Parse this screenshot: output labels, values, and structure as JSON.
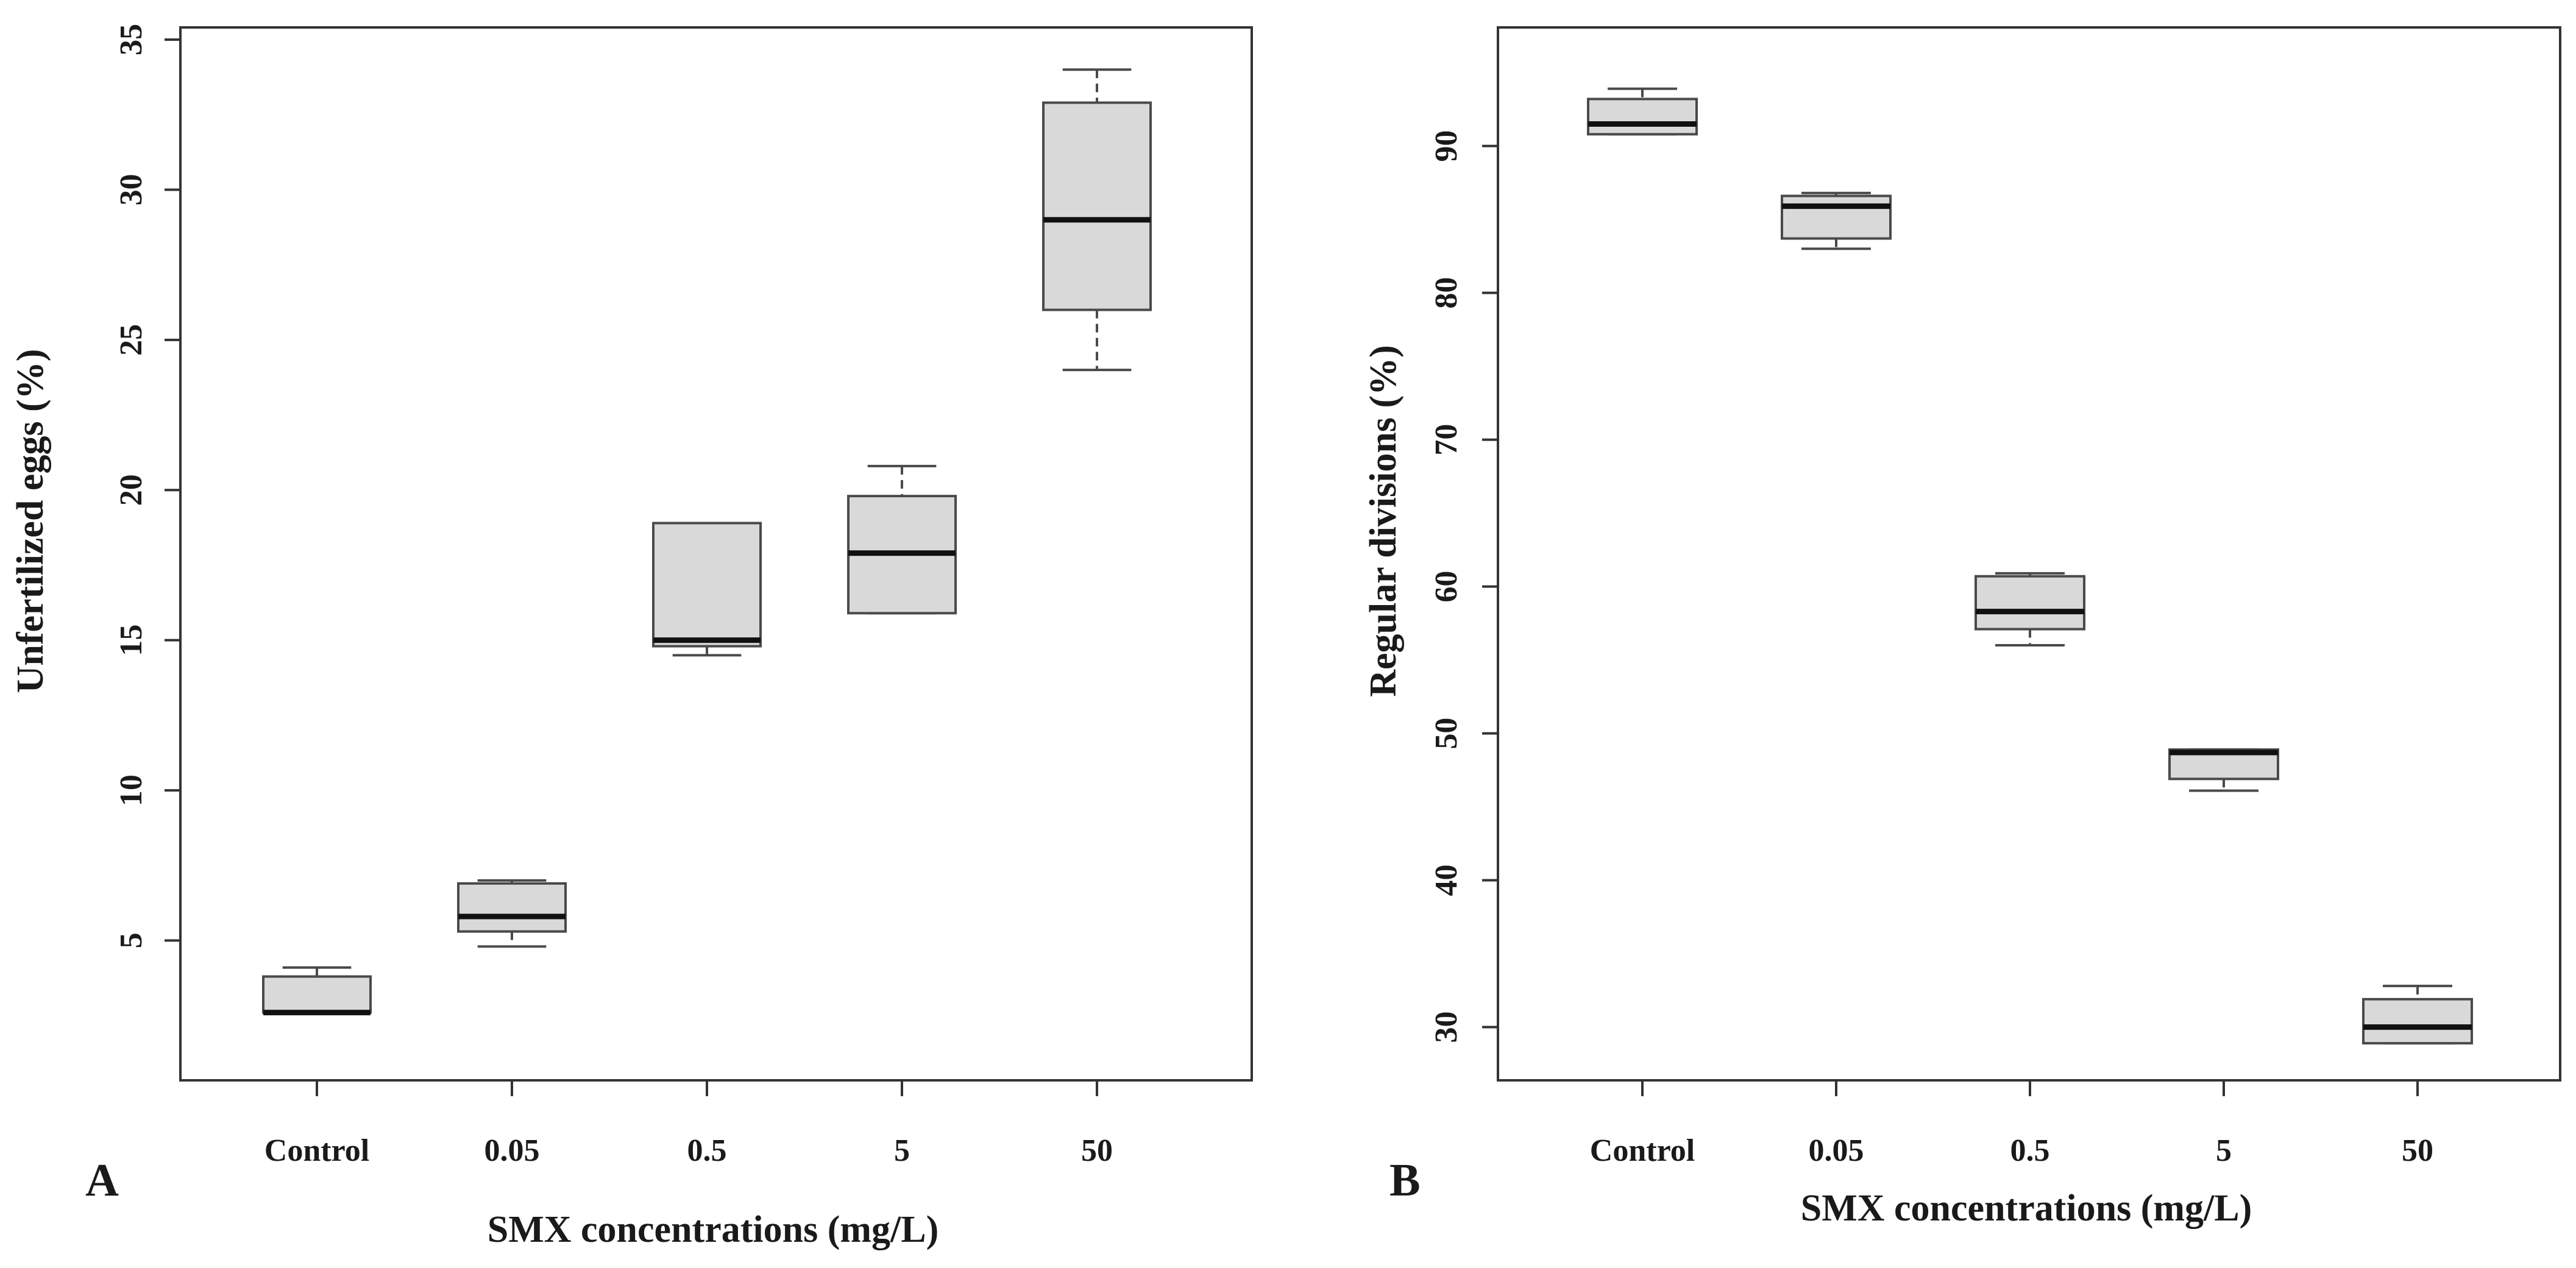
{
  "chart_data": [
    {
      "type": "boxplot",
      "panel_label": "A",
      "xlabel": "SMX concentrations (mg/L)",
      "ylabel": "Unfertilized eggs (%)",
      "ylim": [
        1.5,
        35
      ],
      "yticks": [
        5,
        10,
        15,
        20,
        25,
        30,
        35
      ],
      "categories": [
        "Control",
        "0.05",
        "0.5",
        "5",
        "50"
      ],
      "boxes": [
        {
          "category": "Control",
          "whisker_low": 2.6,
          "q1": 2.6,
          "median": 2.6,
          "q3": 3.8,
          "whisker_high": 4.1
        },
        {
          "category": "0.05",
          "whisker_low": 4.8,
          "q1": 5.3,
          "median": 5.8,
          "q3": 6.9,
          "whisker_high": 7.0
        },
        {
          "category": "0.5",
          "whisker_low": 14.5,
          "q1": 14.8,
          "median": 15.0,
          "q3": 18.9,
          "whisker_high": 18.9
        },
        {
          "category": "5",
          "whisker_low": 15.9,
          "q1": 15.9,
          "median": 17.9,
          "q3": 19.8,
          "whisker_high": 20.8
        },
        {
          "category": "50",
          "whisker_low": 24.0,
          "q1": 26.0,
          "median": 29.0,
          "q3": 32.9,
          "whisker_high": 34.0
        }
      ]
    },
    {
      "type": "boxplot",
      "panel_label": "B",
      "xlabel": "SMX concentrations (mg/L)",
      "ylabel": "Regular divisions (%)",
      "ylim": [
        26.5,
        96
      ],
      "yticks": [
        30,
        40,
        50,
        60,
        70,
        80,
        90
      ],
      "categories": [
        "Control",
        "0.05",
        "0.5",
        "5",
        "50"
      ],
      "boxes": [
        {
          "category": "Control",
          "whisker_low": 90.8,
          "q1": 90.8,
          "median": 91.5,
          "q3": 93.2,
          "whisker_high": 93.9
        },
        {
          "category": "0.05",
          "whisker_low": 83.0,
          "q1": 83.7,
          "median": 85.9,
          "q3": 86.6,
          "whisker_high": 86.8
        },
        {
          "category": "0.5",
          "whisker_low": 56.0,
          "q1": 57.1,
          "median": 58.3,
          "q3": 60.7,
          "whisker_high": 60.9
        },
        {
          "category": "5",
          "whisker_low": 46.1,
          "q1": 46.9,
          "median": 48.7,
          "q3": 48.9,
          "whisker_high": 48.9
        },
        {
          "category": "50",
          "whisker_low": 28.9,
          "q1": 28.9,
          "median": 30.0,
          "q3": 31.9,
          "whisker_high": 32.8
        }
      ]
    }
  ],
  "colors": {
    "box_fill": "#d9d9d9",
    "stroke": "#4a4a4a",
    "median": "#111111",
    "frame": "#333333",
    "text": "#1a1a1a"
  }
}
